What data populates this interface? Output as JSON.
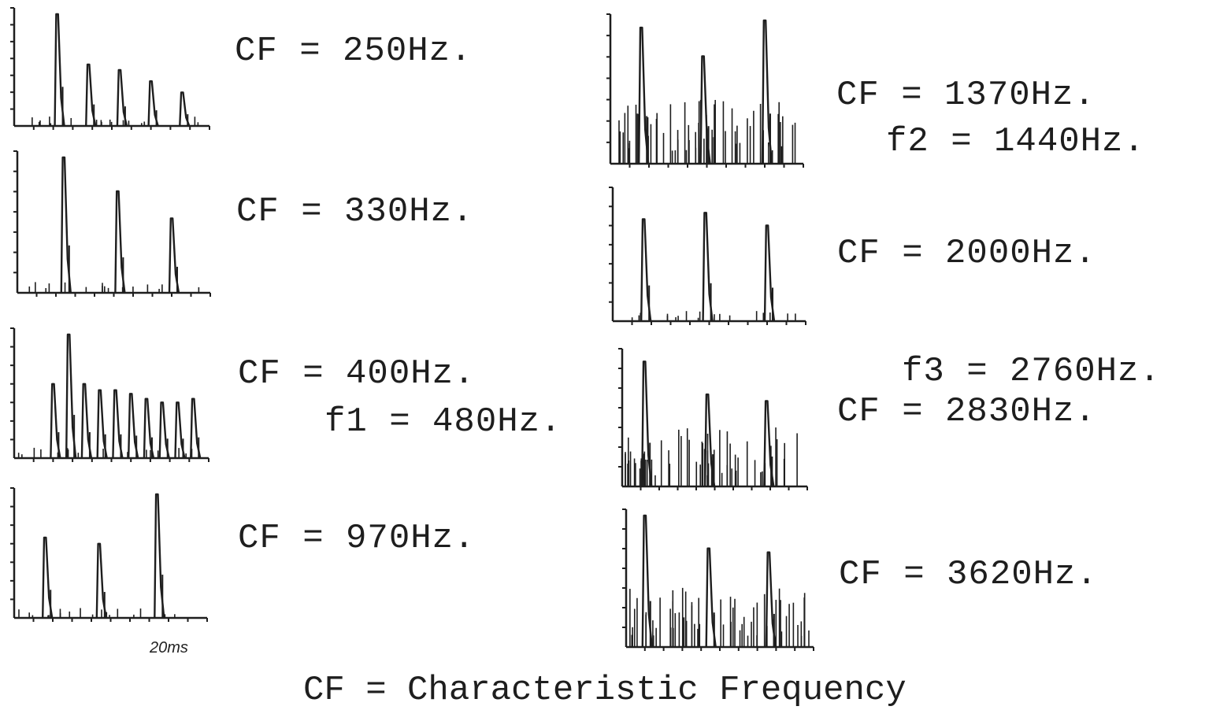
{
  "labels": {
    "p250": "CF = 250Hz.",
    "p330": "CF = 330Hz.",
    "p400": "CF = 400Hz.",
    "f1": "f1 = 480Hz.",
    "p970": "CF = 970Hz.",
    "p1370": "CF = 1370Hz.",
    "f2": "f2 = 1440Hz.",
    "p2000": "CF = 2000Hz.",
    "f3": "f3 = 2760Hz.",
    "p2830": "CF = 2830Hz.",
    "p3620": "CF = 3620Hz."
  },
  "time_label": "20ms",
  "footer": "CF = Characteristic Frequency",
  "colors": {
    "ink": "#1e1e1e"
  },
  "chart_data": [
    {
      "type": "histogram",
      "cf_hz": 250,
      "peak_times_ms": [
        5.5,
        9.5,
        13.5,
        17.5,
        21.5
      ],
      "peak_heights": [
        1.0,
        0.55,
        0.5,
        0.4,
        0.3
      ]
    },
    {
      "type": "histogram",
      "cf_hz": 330,
      "peak_times_ms": [
        6,
        13,
        20
      ],
      "peak_heights": [
        1.0,
        0.75,
        0.55
      ]
    },
    {
      "type": "histogram",
      "cf_hz": 400,
      "f1_hz": 480,
      "peak_times_ms": [
        5,
        7,
        9,
        11,
        13,
        15,
        17,
        19,
        21,
        23
      ],
      "peak_heights": [
        0.6,
        1.0,
        0.6,
        0.55,
        0.55,
        0.52,
        0.48,
        0.45,
        0.45,
        0.48
      ]
    },
    {
      "type": "histogram",
      "cf_hz": 970,
      "peak_times_ms": [
        4,
        11,
        18.5
      ],
      "peak_heights": [
        0.65,
        0.6,
        1.0
      ]
    },
    {
      "type": "histogram",
      "cf_hz": 1370,
      "f2_hz": 1440,
      "peak_times_ms": [
        4,
        12,
        20
      ],
      "peak_heights": [
        0.95,
        0.75,
        1.0
      ]
    },
    {
      "type": "histogram",
      "cf_hz": 2000,
      "peak_times_ms": [
        4,
        12,
        20
      ],
      "peak_heights": [
        0.8,
        0.85,
        0.75
      ]
    },
    {
      "type": "histogram",
      "cf_hz": 2830,
      "f3_hz": 2760,
      "peak_times_ms": [
        3,
        11.5,
        19.5
      ],
      "peak_heights": [
        0.95,
        0.7,
        0.65
      ]
    },
    {
      "type": "histogram",
      "cf_hz": 3620,
      "peak_times_ms": [
        2.5,
        11,
        19
      ],
      "peak_heights": [
        1.0,
        0.75,
        0.72
      ]
    }
  ]
}
